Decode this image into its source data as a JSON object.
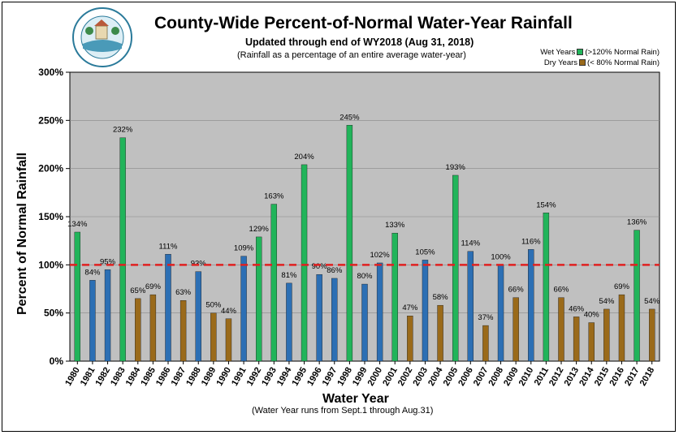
{
  "chart_data": {
    "type": "bar",
    "title": "County-Wide Percent-of-Normal Water-Year Rainfall",
    "subtitle": "Updated through end of WY2018 (Aug 31, 2018)",
    "note": "(Rainfall as a percentage of an entire average water-year)",
    "xlabel": "Water Year",
    "xlabel_note": "(Water Year runs from Sept.1 through Aug.31)",
    "ylabel": "Percent of Normal Rainfall",
    "ylim": [
      0,
      300
    ],
    "yticks": [
      0,
      50,
      100,
      150,
      200,
      250,
      300
    ],
    "ytick_labels": [
      "0%",
      "50%",
      "100%",
      "150%",
      "200%",
      "250%",
      "300%"
    ],
    "reference_line": 100,
    "categories": [
      "1980",
      "1981",
      "1982",
      "1983",
      "1984",
      "1985",
      "1986",
      "1987",
      "1988",
      "1989",
      "1990",
      "1991",
      "1992",
      "1993",
      "1994",
      "1995",
      "1996",
      "1997",
      "1998",
      "1999",
      "2000",
      "2001",
      "2002",
      "2003",
      "2004",
      "2005",
      "2006",
      "2007",
      "2008",
      "2009",
      "2010",
      "2011",
      "2012",
      "2013",
      "2014",
      "2015",
      "2016",
      "2017",
      "2018"
    ],
    "values": [
      134,
      84,
      95,
      232,
      65,
      69,
      111,
      63,
      93,
      50,
      44,
      109,
      129,
      163,
      81,
      204,
      90,
      86,
      245,
      80,
      102,
      133,
      47,
      105,
      58,
      193,
      114,
      37,
      100,
      66,
      116,
      154,
      66,
      46,
      40,
      54,
      69,
      136,
      54
    ],
    "data_labels": [
      "134%",
      "84%",
      "95%",
      "232%",
      "65%",
      "69%",
      "111%",
      "63%",
      "93%",
      "50%",
      "44%",
      "109%",
      "129%",
      "163%",
      "81%",
      "204%",
      "90%",
      "86%",
      "245%",
      "80%",
      "102%",
      "133%",
      "47%",
      "105%",
      "58%",
      "193%",
      "114%",
      "37%",
      "100%",
      "66%",
      "116%",
      "154%",
      "66%",
      "46%",
      "40%",
      "54%",
      "69%",
      "136%",
      "54%"
    ],
    "legend": [
      {
        "name": "Wet Years",
        "desc": "(>120% Normal Rain)",
        "color": "#21b45a"
      },
      {
        "name": "Dry Years",
        "desc": "(<  80% Normal Rain)",
        "color": "#9a6a1a"
      }
    ],
    "normal_color": "#2c6fb4",
    "plot_background": "#c0c0c0",
    "reference_color": "#e02020"
  }
}
